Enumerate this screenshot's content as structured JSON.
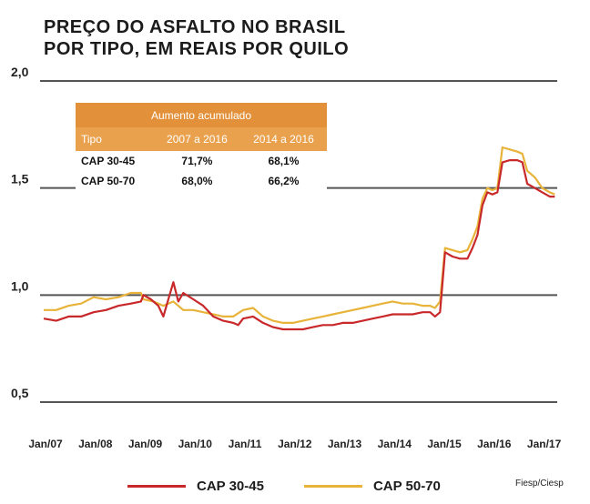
{
  "title": {
    "line1": "PREÇO DO ASFALTO NO BRASIL",
    "line2": "POR TIPO, EM REAIS POR QUILO"
  },
  "source": "Fiesp/Ciesp",
  "table": {
    "header": "Aumento acumulado",
    "columns": [
      "Tipo",
      "2007 a 2016",
      "2014 a 2016"
    ],
    "rows": [
      [
        "CAP 30-45",
        "71,7%",
        "68,1%"
      ],
      [
        "CAP 50-70",
        "68,0%",
        "66,2%"
      ]
    ]
  },
  "chart_data": {
    "type": "line",
    "title": "PREÇO DO ASFALTO NO BRASIL POR TIPO, EM REAIS POR QUILO",
    "ylim": [
      0.5,
      2.0
    ],
    "yticks": [
      0.5,
      1.0,
      1.5,
      2.0
    ],
    "ytick_labels": [
      "0,5",
      "1,0",
      "1,5",
      "2,0"
    ],
    "xlim": [
      2007.0,
      2017.3
    ],
    "xticks": [
      2007,
      2008,
      2009,
      2010,
      2011,
      2012,
      2013,
      2014,
      2015,
      2016,
      2017
    ],
    "xtick_labels": [
      "Jan/07",
      "Jan/08",
      "Jan/09",
      "Jan/10",
      "Jan/11",
      "Jan/12",
      "Jan/13",
      "Jan/14",
      "Jan/15",
      "Jan/16",
      "Jan/17"
    ],
    "grid": "horizontal",
    "legend": "bottom",
    "series": [
      {
        "name": "CAP 30-45",
        "color": "#c8282a",
        "points": [
          [
            2007.0,
            0.89
          ],
          [
            2007.25,
            0.88
          ],
          [
            2007.5,
            0.9
          ],
          [
            2007.75,
            0.9
          ],
          [
            2008.0,
            0.92
          ],
          [
            2008.25,
            0.93
          ],
          [
            2008.5,
            0.95
          ],
          [
            2008.75,
            0.96
          ],
          [
            2008.95,
            0.97
          ],
          [
            2009.0,
            1.0
          ],
          [
            2009.15,
            0.98
          ],
          [
            2009.3,
            0.95
          ],
          [
            2009.4,
            0.9
          ],
          [
            2009.5,
            0.98
          ],
          [
            2009.6,
            1.06
          ],
          [
            2009.7,
            0.97
          ],
          [
            2009.8,
            1.01
          ],
          [
            2010.0,
            0.98
          ],
          [
            2010.2,
            0.95
          ],
          [
            2010.4,
            0.9
          ],
          [
            2010.6,
            0.88
          ],
          [
            2010.8,
            0.87
          ],
          [
            2010.9,
            0.86
          ],
          [
            2011.0,
            0.89
          ],
          [
            2011.2,
            0.9
          ],
          [
            2011.4,
            0.87
          ],
          [
            2011.6,
            0.85
          ],
          [
            2011.8,
            0.84
          ],
          [
            2012.0,
            0.84
          ],
          [
            2012.2,
            0.84
          ],
          [
            2012.4,
            0.85
          ],
          [
            2012.6,
            0.86
          ],
          [
            2012.8,
            0.86
          ],
          [
            2013.0,
            0.87
          ],
          [
            2013.2,
            0.87
          ],
          [
            2013.4,
            0.88
          ],
          [
            2013.6,
            0.89
          ],
          [
            2013.8,
            0.9
          ],
          [
            2014.0,
            0.91
          ],
          [
            2014.2,
            0.91
          ],
          [
            2014.4,
            0.91
          ],
          [
            2014.6,
            0.92
          ],
          [
            2014.75,
            0.92
          ],
          [
            2014.85,
            0.9
          ],
          [
            2014.95,
            0.92
          ],
          [
            2015.05,
            1.2
          ],
          [
            2015.2,
            1.18
          ],
          [
            2015.35,
            1.17
          ],
          [
            2015.5,
            1.17
          ],
          [
            2015.6,
            1.22
          ],
          [
            2015.7,
            1.28
          ],
          [
            2015.8,
            1.42
          ],
          [
            2015.9,
            1.48
          ],
          [
            2016.0,
            1.47
          ],
          [
            2016.1,
            1.48
          ],
          [
            2016.2,
            1.62
          ],
          [
            2016.35,
            1.63
          ],
          [
            2016.5,
            1.63
          ],
          [
            2016.6,
            1.62
          ],
          [
            2016.7,
            1.52
          ],
          [
            2016.85,
            1.5
          ],
          [
            2017.0,
            1.48
          ],
          [
            2017.15,
            1.46
          ],
          [
            2017.25,
            1.46
          ]
        ]
      },
      {
        "name": "CAP 50-70",
        "color": "#e8b339",
        "points": [
          [
            2007.0,
            0.93
          ],
          [
            2007.25,
            0.93
          ],
          [
            2007.5,
            0.95
          ],
          [
            2007.75,
            0.96
          ],
          [
            2008.0,
            0.99
          ],
          [
            2008.25,
            0.98
          ],
          [
            2008.5,
            0.99
          ],
          [
            2008.75,
            1.01
          ],
          [
            2008.95,
            1.01
          ],
          [
            2009.0,
            0.98
          ],
          [
            2009.2,
            0.97
          ],
          [
            2009.4,
            0.95
          ],
          [
            2009.6,
            0.97
          ],
          [
            2009.8,
            0.93
          ],
          [
            2010.0,
            0.93
          ],
          [
            2010.2,
            0.92
          ],
          [
            2010.4,
            0.91
          ],
          [
            2010.6,
            0.9
          ],
          [
            2010.8,
            0.9
          ],
          [
            2011.0,
            0.93
          ],
          [
            2011.2,
            0.94
          ],
          [
            2011.4,
            0.9
          ],
          [
            2011.6,
            0.88
          ],
          [
            2011.8,
            0.87
          ],
          [
            2012.0,
            0.87
          ],
          [
            2012.2,
            0.88
          ],
          [
            2012.4,
            0.89
          ],
          [
            2012.6,
            0.9
          ],
          [
            2012.8,
            0.91
          ],
          [
            2013.0,
            0.92
          ],
          [
            2013.2,
            0.93
          ],
          [
            2013.4,
            0.94
          ],
          [
            2013.6,
            0.95
          ],
          [
            2013.8,
            0.96
          ],
          [
            2014.0,
            0.97
          ],
          [
            2014.2,
            0.96
          ],
          [
            2014.4,
            0.96
          ],
          [
            2014.6,
            0.95
          ],
          [
            2014.75,
            0.95
          ],
          [
            2014.85,
            0.94
          ],
          [
            2014.95,
            0.97
          ],
          [
            2015.05,
            1.22
          ],
          [
            2015.2,
            1.21
          ],
          [
            2015.35,
            1.2
          ],
          [
            2015.5,
            1.21
          ],
          [
            2015.6,
            1.26
          ],
          [
            2015.7,
            1.32
          ],
          [
            2015.8,
            1.45
          ],
          [
            2015.9,
            1.5
          ],
          [
            2016.0,
            1.49
          ],
          [
            2016.1,
            1.5
          ],
          [
            2016.2,
            1.69
          ],
          [
            2016.35,
            1.68
          ],
          [
            2016.5,
            1.67
          ],
          [
            2016.6,
            1.66
          ],
          [
            2016.7,
            1.58
          ],
          [
            2016.85,
            1.55
          ],
          [
            2017.0,
            1.5
          ],
          [
            2017.15,
            1.48
          ],
          [
            2017.25,
            1.47
          ]
        ]
      }
    ]
  }
}
